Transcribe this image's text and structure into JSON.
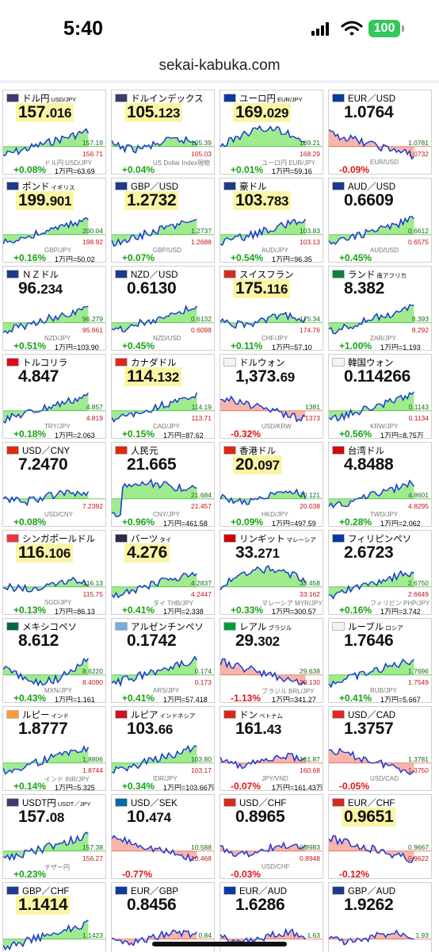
{
  "status": {
    "time": "5:40",
    "battery": "100"
  },
  "browser": {
    "url": "sekai-kabuka.com"
  },
  "tiles": [
    {
      "name": "ドル円",
      "sub": "USD/JPY",
      "int": "157.",
      "dec": "016",
      "hl": true,
      "chart_label": "ドル円 USD/JPY",
      "chg": "+0.08%",
      "dir": "up",
      "man": "1万円=63.69",
      "hi": "157.19",
      "lo": "156.71",
      "flag": "us",
      "trend": "up"
    },
    {
      "name": "ドルインデックス",
      "sub": "",
      "int": "105.",
      "dec": "123",
      "hl": true,
      "chart_label": "US Dollar Index現物",
      "chg": "+0.04%",
      "dir": "up",
      "man": "",
      "hi": "105.39",
      "lo": "105.03",
      "flag": "us",
      "trend": "flat"
    },
    {
      "name": "ユーロ円",
      "sub": "EUR/JPY",
      "int": "169.",
      "dec": "029",
      "hl": true,
      "chart_label": "ユーロ円 EUR/JPY",
      "chg": "+0.01%",
      "dir": "up",
      "man": "1万円=59.16",
      "hi": "169.21",
      "lo": "168.29",
      "flag": "eu",
      "trend": "hump"
    },
    {
      "name": "EUR／USD",
      "sub": "",
      "int": "1.0764",
      "dec": "",
      "hl": false,
      "chart_label": "EUR/USD",
      "chg": "-0.09%",
      "dir": "dn",
      "man": "",
      "hi": "1.0781",
      "lo": "1.0732",
      "flag": "eu",
      "trend": "down"
    },
    {
      "name": "ポンド",
      "sub": "イギリス",
      "int": "199.",
      "dec": "901",
      "hl": true,
      "chart_label": "GBP/JPY",
      "chg": "+0.16%",
      "dir": "up",
      "man": "1万円=50.02",
      "hi": "200.04",
      "lo": "198.92",
      "flag": "gb",
      "trend": "up"
    },
    {
      "name": "GBP／USD",
      "sub": "",
      "int": "1.2732",
      "dec": "",
      "hl": true,
      "chart_label": "GBP/USD",
      "chg": "+0.07%",
      "dir": "up",
      "man": "",
      "hi": "1.2737",
      "lo": "1.2688",
      "flag": "gb",
      "trend": "up"
    },
    {
      "name": "豪ドル",
      "sub": "",
      "int": "103.",
      "dec": "783",
      "hl": true,
      "chart_label": "AUD/JPY",
      "chg": "+0.54%",
      "dir": "up",
      "man": "1万円=96.35",
      "hi": "103.83",
      "lo": "103.13",
      "flag": "au",
      "trend": "up"
    },
    {
      "name": "AUD／USD",
      "sub": "",
      "int": "0.6609",
      "dec": "",
      "hl": false,
      "chart_label": "AUD/USD",
      "chg": "+0.45%",
      "dir": "up",
      "man": "",
      "hi": "0.6612",
      "lo": "0.6575",
      "flag": "au",
      "trend": "up"
    },
    {
      "name": "ＮＺドル",
      "sub": "",
      "int": "96.",
      "dec": "234",
      "hl": false,
      "chart_label": "NZD/JPY",
      "chg": "+0.51%",
      "dir": "up",
      "man": "1万円=103.90",
      "hi": "96.279",
      "lo": "95.661",
      "flag": "nz",
      "trend": "up"
    },
    {
      "name": "NZD／USD",
      "sub": "",
      "int": "0.6130",
      "dec": "",
      "hl": false,
      "chart_label": "NZD/USD",
      "chg": "+0.45%",
      "dir": "up",
      "man": "",
      "hi": "0.6132",
      "lo": "0.6098",
      "flag": "nz",
      "trend": "up"
    },
    {
      "name": "スイスフラン",
      "sub": "",
      "int": "175.",
      "dec": "116",
      "hl": true,
      "chart_label": "CHF/JPY",
      "chg": "+0.11%",
      "dir": "up",
      "man": "1万円=57.10",
      "hi": "175.34",
      "lo": "174.76",
      "flag": "ch",
      "trend": "flat"
    },
    {
      "name": "ランド",
      "sub": "南アフリカ",
      "int": "8.382",
      "dec": "",
      "hl": false,
      "chart_label": "ZAR/JPY",
      "chg": "+1.00%",
      "dir": "up",
      "man": "1万円=1,193",
      "hi": "8.393",
      "lo": "8.292",
      "flag": "za",
      "trend": "up"
    },
    {
      "name": "トルコリラ",
      "sub": "",
      "int": "4.847",
      "dec": "",
      "hl": false,
      "chart_label": "TRY/JPY",
      "chg": "+0.18%",
      "dir": "up",
      "man": "1万円=2,063",
      "hi": "4.857",
      "lo": "4.819",
      "flag": "tr",
      "trend": "up"
    },
    {
      "name": "カナダドル",
      "sub": "",
      "int": "114.",
      "dec": "132",
      "hl": true,
      "chart_label": "CAD/JPY",
      "chg": "+0.15%",
      "dir": "up",
      "man": "1万円=87.62",
      "hi": "114.19",
      "lo": "113.71",
      "flag": "ca",
      "trend": "up"
    },
    {
      "name": "ドルウォン",
      "sub": "",
      "int": "1,373.",
      "dec": "69",
      "hl": false,
      "chart_label": "USD/KRW",
      "chg": "-0.32%",
      "dir": "dn",
      "man": "",
      "hi": "1381",
      "lo": "1373",
      "flag": "kr",
      "trend": "down"
    },
    {
      "name": "韓国ウォン",
      "sub": "",
      "int": "0.114266",
      "dec": "",
      "hl": false,
      "chart_label": "KRW/JPY",
      "chg": "+0.56%",
      "dir": "up",
      "man": "1万円=8.75万",
      "hi": "0.1143",
      "lo": "0.1134",
      "flag": "kr",
      "trend": "up"
    },
    {
      "name": "USD／CNY",
      "sub": "",
      "int": "7.2470",
      "dec": "",
      "hl": false,
      "chart_label": "USD/CNY",
      "chg": "+0.08%",
      "dir": "up",
      "man": "",
      "hi": "",
      "lo": "7.2392",
      "flag": "cn",
      "trend": "flat"
    },
    {
      "name": "人民元",
      "sub": "",
      "int": "21.665",
      "dec": "",
      "hl": false,
      "chart_label": "CNY/JPY",
      "chg": "+0.96%",
      "dir": "up",
      "man": "1万円=461.58",
      "hi": "21.684",
      "lo": "21.457",
      "flag": "cn",
      "trend": "jump"
    },
    {
      "name": "香港ドル",
      "sub": "",
      "int": "20.",
      "dec": "097",
      "hl": true,
      "chart_label": "HKD/JPY",
      "chg": "+0.09%",
      "dir": "up",
      "man": "1万円=497.59",
      "hi": "20.121",
      "lo": "20.038",
      "flag": "hk",
      "trend": "flat"
    },
    {
      "name": "台湾ドル",
      "sub": "",
      "int": "4.8488",
      "dec": "",
      "hl": false,
      "chart_label": "TWD/JPY",
      "chg": "+0.28%",
      "dir": "up",
      "man": "1万円=2,062",
      "hi": "4.8601",
      "lo": "4.8295",
      "flag": "tw",
      "trend": "up"
    },
    {
      "name": "シンガポールドル",
      "sub": "",
      "int": "116.",
      "dec": "106",
      "hl": true,
      "chart_label": "SGD/JPY",
      "chg": "+0.13%",
      "dir": "up",
      "man": "1万円=86.13",
      "hi": "116.13",
      "lo": "115.75",
      "flag": "sg",
      "trend": "flat"
    },
    {
      "name": "バーツ",
      "sub": "タイ",
      "int": "4.276",
      "dec": "",
      "hl": true,
      "chart_label": "タイ THB/JPY",
      "chg": "+0.41%",
      "dir": "up",
      "man": "1万円=2,338",
      "hi": "4.2837",
      "lo": "4.2447",
      "flag": "th",
      "trend": "up"
    },
    {
      "name": "リンギット",
      "sub": "マレーシア",
      "int": "33.",
      "dec": "271",
      "hl": false,
      "chart_label": "マレーシア MYR/JPY",
      "chg": "+0.33%",
      "dir": "up",
      "man": "1万円=300.57",
      "hi": "33.458",
      "lo": "33.162",
      "flag": "my",
      "trend": "hump"
    },
    {
      "name": "フィリピンペソ",
      "sub": "",
      "int": "2.6723",
      "dec": "",
      "hl": false,
      "chart_label": "フィリピン PHP/JPY",
      "chg": "+0.16%",
      "dir": "up",
      "man": "1万円=3,742",
      "hi": "2.6750",
      "lo": "2.6649",
      "flag": "ph",
      "trend": "up"
    },
    {
      "name": "メキシコペソ",
      "sub": "",
      "int": "8.612",
      "dec": "",
      "hl": false,
      "chart_label": "MXN/JPY",
      "chg": "+0.43%",
      "dir": "up",
      "man": "1万円=1,161",
      "hi": "8.6220",
      "lo": "8.4090",
      "flag": "mx",
      "trend": "vee"
    },
    {
      "name": "アルゼンチンペソ",
      "sub": "",
      "int": "0.1742",
      "dec": "",
      "hl": false,
      "chart_label": "ARS/JPY",
      "chg": "+0.41%",
      "dir": "up",
      "man": "1万円=57,418",
      "hi": "0.174",
      "lo": "0.173",
      "flag": "ar",
      "trend": "up"
    },
    {
      "name": "レアル",
      "sub": "ブラジル",
      "int": "29.",
      "dec": "302",
      "hl": false,
      "chart_label": "ブラジル BRL/JPY",
      "chg": "-1.13%",
      "dir": "dn",
      "man": "1万円=341.27",
      "hi": "29.638",
      "lo": "29.130",
      "flag": "br",
      "trend": "down"
    },
    {
      "name": "ルーブル",
      "sub": "ロシア",
      "int": "1.7646",
      "dec": "",
      "hl": false,
      "chart_label": "RUB/JPY",
      "chg": "+0.41%",
      "dir": "up",
      "man": "1万円=5,667",
      "hi": "1.7696",
      "lo": "1.7549",
      "flag": "ru",
      "trend": "up"
    },
    {
      "name": "ルピー",
      "sub": "インド",
      "int": "1.8777",
      "dec": "",
      "hl": false,
      "chart_label": "インド INR/JPY",
      "chg": "+0.14%",
      "dir": "up",
      "man": "1万円=5,325",
      "hi": "1.8806",
      "lo": "1.8744",
      "flag": "in",
      "trend": "up"
    },
    {
      "name": "ルピア",
      "sub": "インドネシア",
      "int": "103.",
      "dec": "66",
      "hl": false,
      "chart_label": "IDR/JPY",
      "chg": "+0.34%",
      "dir": "up",
      "man": "1万円=103.66万",
      "hi": "103.80",
      "lo": "103.17",
      "flag": "id",
      "trend": "up"
    },
    {
      "name": "ドン",
      "sub": "ベトナム",
      "int": "161.",
      "dec": "43",
      "hl": false,
      "chart_label": "JPY/VND",
      "chg": "-0.07%",
      "dir": "dn",
      "man": "1万円=161.43万",
      "hi": "161.87",
      "lo": "160.68",
      "flag": "vn",
      "trend": "flat"
    },
    {
      "name": "USD／CAD",
      "sub": "",
      "int": "1.3757",
      "dec": "",
      "hl": false,
      "chart_label": "USD/CAD",
      "chg": "-0.05%",
      "dir": "dn",
      "man": "",
      "hi": "1.3781",
      "lo": "1.3750",
      "flag": "ca",
      "trend": "down"
    },
    {
      "name": "USDT円",
      "sub": "USDT／JPY",
      "int": "157.",
      "dec": "08",
      "hl": false,
      "chart_label": "テザー円",
      "chg": "+0.23%",
      "dir": "up",
      "man": "",
      "hi": "157.38",
      "lo": "156.27",
      "flag": "us",
      "trend": "up"
    },
    {
      "name": "USD／SEK",
      "sub": "",
      "int": "10.",
      "dec": "474",
      "hl": false,
      "chart_label": "",
      "chg": "-0.77%",
      "dir": "dn",
      "man": "",
      "hi": "10.588",
      "lo": "10.468",
      "flag": "se",
      "trend": "down"
    },
    {
      "name": "USD／CHF",
      "sub": "",
      "int": "0.8965",
      "dec": "",
      "hl": false,
      "chart_label": "USD/CHF",
      "chg": "-0.03%",
      "dir": "dn",
      "man": "",
      "hi": "0.8983",
      "lo": "0.8948",
      "flag": "ch",
      "trend": "flat"
    },
    {
      "name": "EUR／CHF",
      "sub": "",
      "int": "0.9651",
      "dec": "",
      "hl": true,
      "chart_label": "",
      "chg": "-0.12%",
      "dir": "dn",
      "man": "",
      "hi": "0.9667",
      "lo": "0.9622",
      "flag": "ch",
      "trend": "down"
    },
    {
      "name": "GBP／CHF",
      "sub": "",
      "int": "1.1414",
      "dec": "",
      "hl": true,
      "chart_label": "",
      "chg": "",
      "dir": "up",
      "man": "",
      "hi": "1.1423",
      "lo": "",
      "flag": "gb",
      "trend": "up"
    },
    {
      "name": "EUR／GBP",
      "sub": "",
      "int": "0.8456",
      "dec": "",
      "hl": false,
      "chart_label": "",
      "chg": "",
      "dir": "dn",
      "man": "",
      "hi": "0.84",
      "lo": "",
      "flag": "eu",
      "trend": "flat"
    },
    {
      "name": "EUR／AUD",
      "sub": "",
      "int": "1.6286",
      "dec": "",
      "hl": false,
      "chart_label": "",
      "chg": "",
      "dir": "dn",
      "man": "",
      "hi": "1.63",
      "lo": "",
      "flag": "eu",
      "trend": "flat"
    },
    {
      "name": "GBP／AUD",
      "sub": "",
      "int": "1.9262",
      "dec": "",
      "hl": false,
      "chart_label": "",
      "chg": "",
      "dir": "dn",
      "man": "",
      "hi": "1.93",
      "lo": "",
      "flag": "gb",
      "trend": "flat"
    }
  ],
  "colors": {
    "up": "#16a316",
    "down": "#e0151a",
    "up_fill": "#8fe77a",
    "down_fill": "#f6a89a",
    "line": "#1a3ad6",
    "highlight": "#fbf6a6"
  },
  "flags": {
    "us": "#3c3b6e",
    "eu": "#0a3a9e",
    "gb": "#1f3a8a",
    "au": "#1f3a8a",
    "nz": "#1f3a8a",
    "ch": "#d52b1e",
    "za": "#10803a",
    "tr": "#e30a17",
    "ca": "#e1261c",
    "kr": "#f4f4f4",
    "cn": "#de2910",
    "hk": "#de2910",
    "tw": "#d20a0a",
    "sg": "#ef3340",
    "th": "#2d2a4a",
    "my": "#cc0001",
    "ph": "#0038a8",
    "mx": "#006847",
    "ar": "#74acdf",
    "br": "#009c3b",
    "ru": "#f4f4f4",
    "in": "#ff9933",
    "id": "#ce1126",
    "vn": "#da251d",
    "se": "#006aa7"
  }
}
